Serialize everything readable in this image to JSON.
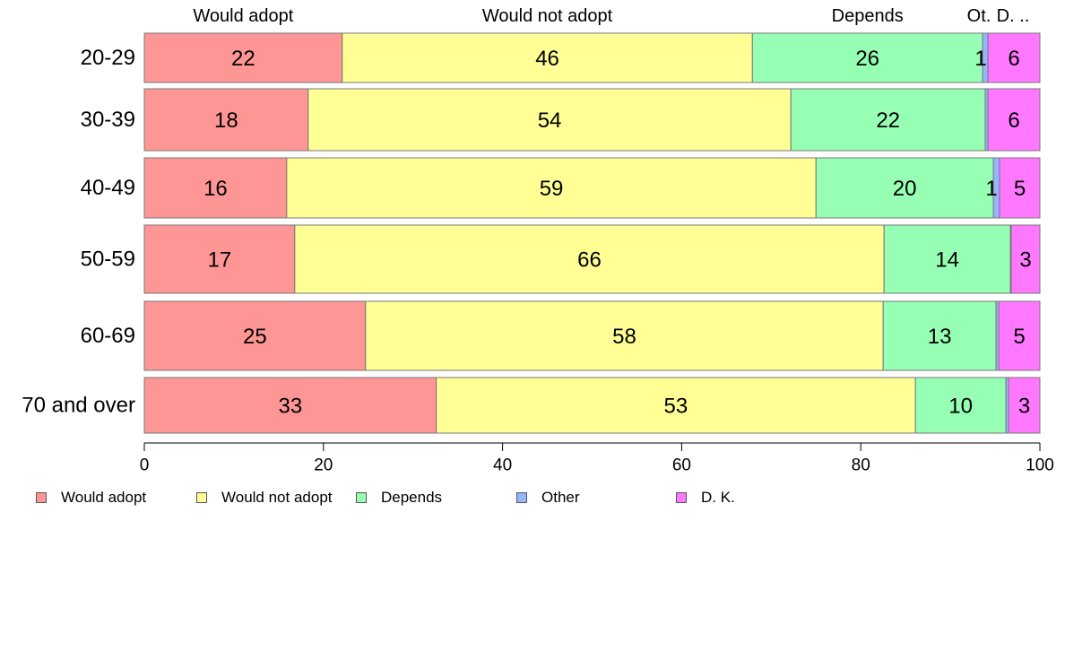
{
  "chart_data": {
    "type": "bar",
    "orientation": "horizontal",
    "stacked": true,
    "categories": [
      "20-29",
      "30-39",
      "40-49",
      "50-59",
      "60-69",
      "70 and over"
    ],
    "series": [
      {
        "name": "Would adopt",
        "color": "#ff9696",
        "values": [
          22.1,
          18.3,
          15.9,
          16.8,
          24.7,
          32.6
        ],
        "labels": [
          "22",
          "18",
          "16",
          "17",
          "25",
          "33"
        ]
      },
      {
        "name": "Would not adopt",
        "color": "#ffff96",
        "values": [
          45.8,
          53.9,
          59.1,
          65.8,
          57.8,
          53.5
        ],
        "labels": [
          "46",
          "54",
          "59",
          "66",
          "58",
          "53"
        ]
      },
      {
        "name": "Depends",
        "color": "#96ffb4",
        "values": [
          25.7,
          21.7,
          19.8,
          14.1,
          12.6,
          10.1
        ],
        "labels": [
          "26",
          "22",
          "20",
          "14",
          "13",
          "10"
        ]
      },
      {
        "name": "Other",
        "color": "#96b4ff",
        "values": [
          0.6,
          0.3,
          0.7,
          0.1,
          0.3,
          0.3
        ],
        "labels": [
          "1",
          "",
          "1",
          "",
          "",
          ""
        ]
      },
      {
        "name": "D. K.",
        "color": "#ff78ff",
        "values": [
          5.8,
          5.8,
          4.5,
          3.2,
          4.6,
          3.5
        ],
        "labels": [
          "6",
          "6",
          "5",
          "3",
          "5",
          "3"
        ]
      }
    ],
    "top_labels": [
      "Would adopt",
      "Would not adopt",
      "Depends",
      "Ot.",
      "D. .."
    ],
    "xlim": [
      0,
      100
    ],
    "xticks": [
      "0",
      "20",
      "40",
      "60",
      "80",
      "100"
    ],
    "legend_position": "bottom-left",
    "grid": false
  }
}
